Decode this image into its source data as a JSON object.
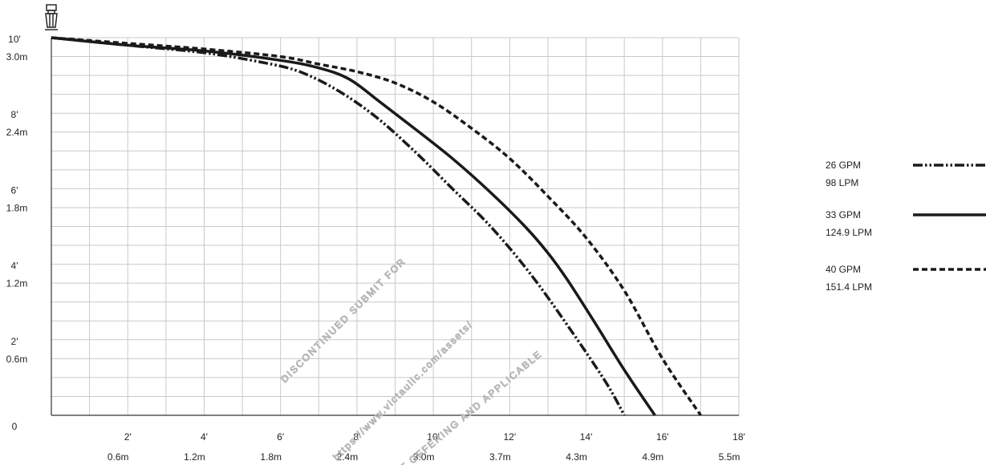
{
  "chart_data": {
    "type": "line",
    "xlabel": "",
    "ylabel": "",
    "xlim": [
      0,
      18
    ],
    "ylim": [
      0,
      10
    ],
    "grid": true,
    "legend_position": "right",
    "x_ticks": [
      {
        "value": 2,
        "label_ft": "2'",
        "label_m": "0.6m"
      },
      {
        "value": 4,
        "label_ft": "4'",
        "label_m": "1.2m"
      },
      {
        "value": 6,
        "label_ft": "6'",
        "label_m": "1.8m"
      },
      {
        "value": 8,
        "label_ft": "8'",
        "label_m": "2.4m"
      },
      {
        "value": 10,
        "label_ft": "10'",
        "label_m": "3.0m"
      },
      {
        "value": 12,
        "label_ft": "12'",
        "label_m": "3.7m"
      },
      {
        "value": 14,
        "label_ft": "14'",
        "label_m": "4.3m"
      },
      {
        "value": 16,
        "label_ft": "16'",
        "label_m": "4.9m"
      },
      {
        "value": 18,
        "label_ft": "18'",
        "label_m": "5.5m"
      }
    ],
    "y_ticks": [
      {
        "value": 0,
        "label_ft": "0",
        "label_m": ""
      },
      {
        "value": 2,
        "label_ft": "2'",
        "label_m": "0.6m"
      },
      {
        "value": 4,
        "label_ft": "4'",
        "label_m": "1.2m"
      },
      {
        "value": 6,
        "label_ft": "6'",
        "label_m": "1.8m"
      },
      {
        "value": 8,
        "label_ft": "8'",
        "label_m": "2.4m"
      },
      {
        "value": 10,
        "label_ft": "10'",
        "label_m": "3.0m"
      }
    ],
    "series": [
      {
        "name": "26 GPM",
        "name_metric": "98 LPM",
        "style": "dash-dot-dot",
        "color": "#1a1a1a",
        "x": [
          0,
          2,
          4,
          5.5,
          6.5,
          7.5,
          8.5,
          9.5,
          10.5,
          11.5,
          12.5,
          13.5,
          14.5,
          15.0
        ],
        "y": [
          10,
          9.8,
          9.6,
          9.35,
          9.1,
          8.6,
          7.9,
          7.0,
          6.0,
          5.0,
          3.8,
          2.4,
          0.9,
          0
        ]
      },
      {
        "name": "33 GPM",
        "name_metric": "124.9 LPM",
        "style": "solid",
        "color": "#1a1a1a",
        "x": [
          0,
          2,
          4,
          6,
          7,
          7.8,
          8.6,
          9.5,
          10.5,
          11.5,
          12.4,
          13.0,
          13.5,
          14.2,
          15.0,
          15.8
        ],
        "y": [
          10,
          9.8,
          9.65,
          9.4,
          9.2,
          8.9,
          8.3,
          7.6,
          6.8,
          5.9,
          5.0,
          4.3,
          3.6,
          2.5,
          1.2,
          0
        ]
      },
      {
        "name": "40 GPM",
        "name_metric": "151.4 LPM",
        "style": "dashed",
        "color": "#1a1a1a",
        "x": [
          0,
          2,
          4,
          6,
          7,
          8,
          9,
          10,
          11,
          12,
          13,
          14,
          15,
          16,
          17.0
        ],
        "y": [
          10,
          9.85,
          9.7,
          9.5,
          9.3,
          9.1,
          8.8,
          8.3,
          7.6,
          6.8,
          5.8,
          4.7,
          3.3,
          1.5,
          0
        ]
      }
    ]
  },
  "watermark": {
    "lines": [
      "DISCONTINUED SUBMIT FOR",
      "https://www.victaulic.com/assets/",
      "NT OFFERING AND APPLICABLE"
    ]
  }
}
